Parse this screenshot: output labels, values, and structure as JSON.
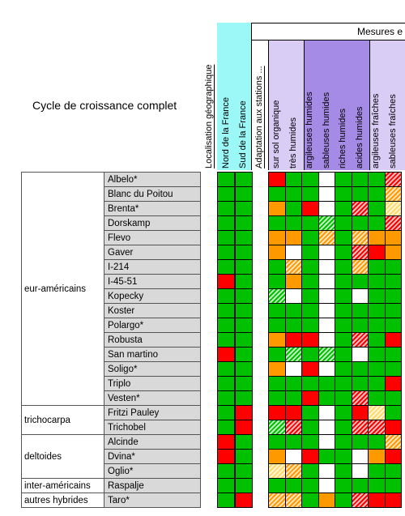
{
  "title": "Cycle de croissance complet",
  "header": {
    "section_right": "Mesures e",
    "loc_geo": "Localisation géographique",
    "adaptation": "Adaptation aux stations ...",
    "col_labels": [
      "Nord de la France",
      "Sud de la France"
    ],
    "station_labels": [
      "sur sol organique",
      "très humides",
      "argileuses humides",
      "sableuses humides",
      "riches humides",
      "acides humides",
      "argileuses fraîches",
      "sableuses fraîches"
    ]
  },
  "colors": {
    "G": "#00c000",
    "O": "#ff9900",
    "R": "#ff0000",
    "W": "#ffffff",
    "Y": "#ffd966",
    "cyan_band": "#9cf7f7",
    "lilac_band": "#d9ccf5",
    "purple_band": "#a58be6"
  },
  "groups": [
    {
      "name": "eur-américains",
      "rows": 16
    },
    {
      "name": "trichocarpa",
      "rows": 2
    },
    {
      "name": "deltoides",
      "rows": 3
    },
    {
      "name": "inter-américains",
      "rows": 1
    },
    {
      "name": "autres hybrides",
      "rows": 1
    }
  ],
  "varieties": [
    "Albelo*",
    "Blanc du Poitou",
    "Brenta*",
    "Dorskamp",
    "Flevo",
    "Gaver",
    "I-214",
    "I-45-51",
    "Kopecky",
    "Koster",
    "Polargo*",
    "Robusta",
    "San martino",
    "Soligo*",
    "Triplo",
    "Vesten*",
    "Fritzi Pauley",
    "Trichobel",
    "Alcinde",
    "Dvina*",
    "Oglio*",
    "Raspalje",
    "Taro*"
  ],
  "matrix_geo": [
    [
      "G",
      "G"
    ],
    [
      "G",
      "G"
    ],
    [
      "G",
      "G"
    ],
    [
      "G",
      "G"
    ],
    [
      "G",
      "G"
    ],
    [
      "G",
      "G"
    ],
    [
      "G",
      "G"
    ],
    [
      "R",
      "G"
    ],
    [
      "G",
      "G"
    ],
    [
      "G",
      "G"
    ],
    [
      "G",
      "G"
    ],
    [
      "G",
      "G"
    ],
    [
      "R",
      "G"
    ],
    [
      "G",
      "G"
    ],
    [
      "G",
      "G"
    ],
    [
      "G",
      "G"
    ],
    [
      "G",
      "R"
    ],
    [
      "G",
      "R"
    ],
    [
      "R",
      "G"
    ],
    [
      "R",
      "G"
    ],
    [
      "G",
      "G"
    ],
    [
      "G",
      "G"
    ],
    [
      "G",
      "R"
    ]
  ],
  "matrix_station": [
    [
      "R",
      "G",
      "G",
      "W",
      "G",
      "G",
      "G",
      "Rh"
    ],
    [
      "G",
      "G",
      "G",
      "W",
      "G",
      "G",
      "G",
      "Oh"
    ],
    [
      "O",
      "G",
      "R",
      "W",
      "G",
      "Rh",
      "G",
      "Yh"
    ],
    [
      "G",
      "G",
      "G",
      "Gh",
      "G",
      "G",
      "G",
      "Rh"
    ],
    [
      "O",
      "O",
      "G",
      "Oh",
      "G",
      "Oh",
      "O",
      "O"
    ],
    [
      "O",
      "W",
      "G",
      "W",
      "G",
      "Rh",
      "R",
      "O"
    ],
    [
      "G",
      "Oh",
      "G",
      "W",
      "G",
      "Oh",
      "G",
      "G"
    ],
    [
      "G",
      "O",
      "G",
      "W",
      "G",
      "G",
      "G",
      "G"
    ],
    [
      "Gh",
      "W",
      "G",
      "W",
      "G",
      "W",
      "G",
      "G"
    ],
    [
      "G",
      "G",
      "G",
      "W",
      "G",
      "G",
      "G",
      "G"
    ],
    [
      "G",
      "G",
      "G",
      "W",
      "G",
      "G",
      "G",
      "G"
    ],
    [
      "O",
      "R",
      "R",
      "W",
      "G",
      "Rh",
      "G",
      "R"
    ],
    [
      "G",
      "Gh",
      "G",
      "Gh",
      "G",
      "W",
      "G",
      "G"
    ],
    [
      "O",
      "W",
      "R",
      "W",
      "G",
      "G",
      "G",
      "G"
    ],
    [
      "G",
      "G",
      "G",
      "G",
      "G",
      "G",
      "G",
      "R"
    ],
    [
      "G",
      "G",
      "R",
      "G",
      "G",
      "Rh",
      "G",
      "G"
    ],
    [
      "R",
      "R",
      "G",
      "W",
      "G",
      "R",
      "Yh",
      "G"
    ],
    [
      "Gh",
      "Rh",
      "G",
      "W",
      "G",
      "Rh",
      "Rh",
      "R"
    ],
    [
      "G",
      "G",
      "G",
      "W",
      "G",
      "G",
      "G",
      "Oh"
    ],
    [
      "O",
      "W",
      "R",
      "G",
      "G",
      "W",
      "O",
      "R"
    ],
    [
      "Yh",
      "Oh",
      "G",
      "W",
      "G",
      "W",
      "G",
      "G"
    ],
    [
      "G",
      "G",
      "G",
      "W",
      "G",
      "G",
      "G",
      "G"
    ],
    [
      "Oh",
      "Oh",
      "G",
      "O",
      "G",
      "Rh",
      "R",
      "R"
    ]
  ]
}
